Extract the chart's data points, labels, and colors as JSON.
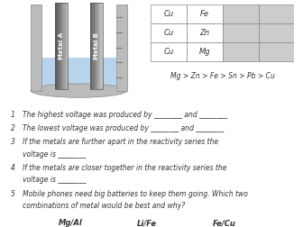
{
  "background_color": "#ffffff",
  "beaker": {
    "liquid_color": "#b8d4ec",
    "wall_color": "#bbbbbb",
    "label_a": "Metal A",
    "label_b": "Metal B"
  },
  "table": {
    "rows": [
      [
        "Cu",
        "Fe"
      ],
      [
        "Cu",
        "Zn"
      ],
      [
        "Cu",
        "Mg"
      ]
    ],
    "n_extra_cols": 2
  },
  "reactivity": "Mg > Zn > Fe > Sn > Pb > Cu",
  "questions": [
    [
      "1",
      "The highest voltage was produced by ________ and ________"
    ],
    [
      "2",
      "The lowest voltage was produced by ________ and ________"
    ],
    [
      "3",
      "If the metals are further apart in the reactivity series the",
      "voltage is ________"
    ],
    [
      "4",
      "If the metals are closer together in the reactivity series the",
      "voltage is ________"
    ],
    [
      "5",
      "Mobile phones need big batteries to keep them going. Which two",
      "combinations of metal would be best and why?"
    ]
  ],
  "options": [
    "Mg/Al",
    "Li/Fe",
    "Fe/Cu"
  ],
  "text_color": "#333333",
  "line_color": "#999999",
  "shade_color": "#cccccc"
}
